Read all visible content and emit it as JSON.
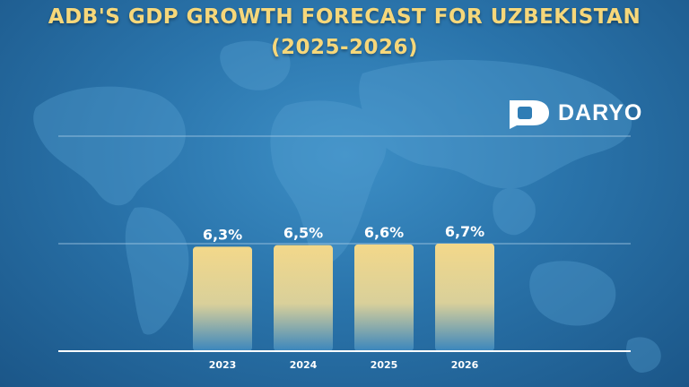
{
  "header": {
    "title_line1": "ADB'S GDP GROWTH FORECAST FOR UZBEKISTAN",
    "title_line2": "(2025-2026)"
  },
  "brand": {
    "name": "DARYO"
  },
  "colors": {
    "accent": "#f6d77a",
    "bar_top": "#f3d88a",
    "bar_bottom": "#2f7db5"
  },
  "chart_data": {
    "type": "bar",
    "title": "ADB'S GDP GROWTH FORECAST FOR UZBEKISTAN (2025-2026)",
    "categories": [
      "2023",
      "2024",
      "2025",
      "2026"
    ],
    "values": [
      6.3,
      6.5,
      6.6,
      6.7
    ],
    "data_labels": [
      "6,3%",
      "6,5%",
      "6,6%",
      "6,7%"
    ],
    "xlabel": "",
    "ylabel": "",
    "ylim": [
      0,
      7
    ],
    "grid": true,
    "legend": "none"
  }
}
